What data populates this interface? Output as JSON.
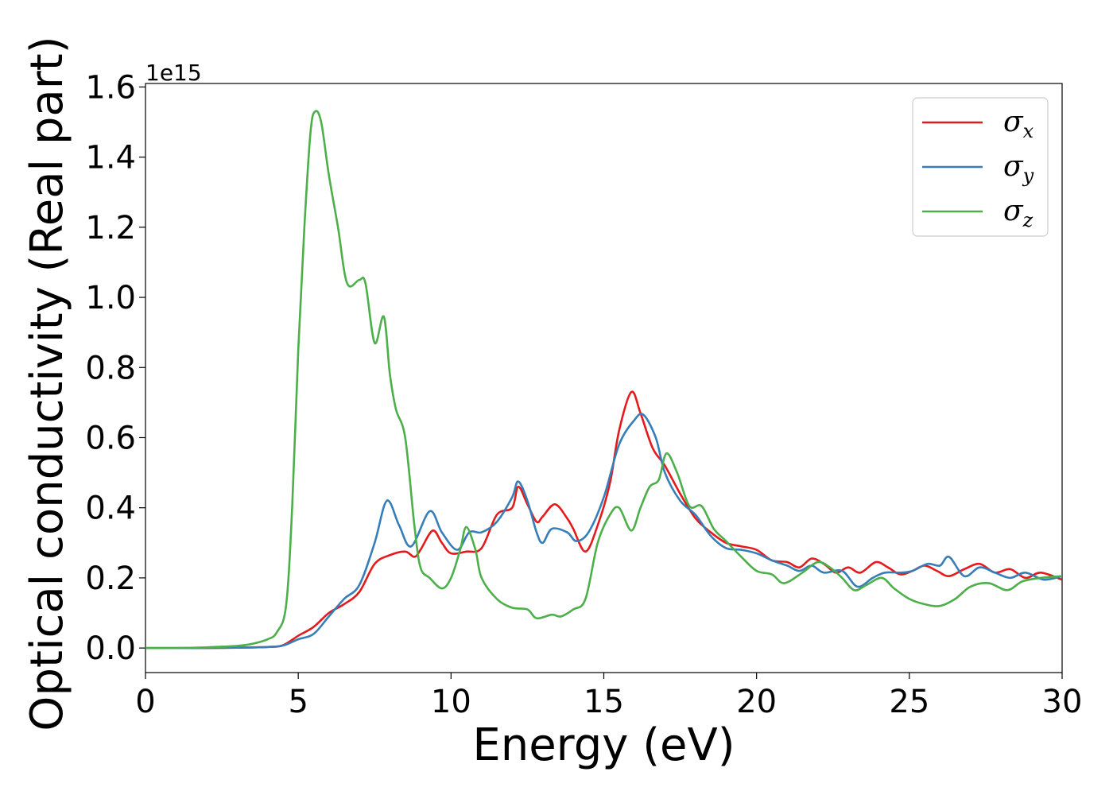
{
  "chart_data": {
    "type": "line",
    "title": "",
    "xlabel": "Energy (eV)",
    "ylabel": "Optical conductivity (Real part)",
    "y_offset_label": "1e15",
    "xlim": [
      0,
      30
    ],
    "ylim": [
      -0.07,
      1.61
    ],
    "x_ticks": [
      0,
      5,
      10,
      15,
      20,
      25,
      30
    ],
    "x_tick_labels": [
      "0",
      "5",
      "10",
      "15",
      "20",
      "25",
      "30"
    ],
    "y_ticks": [
      0.0,
      0.2,
      0.4,
      0.6,
      0.8,
      1.0,
      1.2,
      1.4,
      1.6
    ],
    "y_tick_labels": [
      "0.0",
      "0.2",
      "0.4",
      "0.6",
      "0.8",
      "1.0",
      "1.2",
      "1.4",
      "1.6"
    ],
    "grid": false,
    "legend_position": "top-right",
    "series": [
      {
        "name": "σx",
        "symbol": "σ",
        "subscript": "x",
        "color": "#e41a1c",
        "points": [
          [
            0,
            0.0
          ],
          [
            1,
            0.0
          ],
          [
            2,
            0.0
          ],
          [
            3,
            0.001
          ],
          [
            4,
            0.003
          ],
          [
            4.5,
            0.008
          ],
          [
            5,
            0.035
          ],
          [
            5.5,
            0.06
          ],
          [
            6,
            0.1
          ],
          [
            6.5,
            0.125
          ],
          [
            7,
            0.16
          ],
          [
            7.5,
            0.24
          ],
          [
            8,
            0.265
          ],
          [
            8.5,
            0.275
          ],
          [
            8.8,
            0.26
          ],
          [
            9,
            0.28
          ],
          [
            9.4,
            0.335
          ],
          [
            9.7,
            0.3
          ],
          [
            10,
            0.27
          ],
          [
            10.5,
            0.275
          ],
          [
            11,
            0.285
          ],
          [
            11.5,
            0.38
          ],
          [
            12,
            0.4
          ],
          [
            12.2,
            0.46
          ],
          [
            12.5,
            0.41
          ],
          [
            12.8,
            0.36
          ],
          [
            13,
            0.375
          ],
          [
            13.4,
            0.41
          ],
          [
            13.8,
            0.37
          ],
          [
            14,
            0.34
          ],
          [
            14.4,
            0.275
          ],
          [
            14.8,
            0.35
          ],
          [
            15.2,
            0.47
          ],
          [
            15.5,
            0.62
          ],
          [
            15.9,
            0.73
          ],
          [
            16.2,
            0.67
          ],
          [
            16.6,
            0.57
          ],
          [
            17,
            0.52
          ],
          [
            17.5,
            0.44
          ],
          [
            18,
            0.37
          ],
          [
            18.5,
            0.33
          ],
          [
            19,
            0.3
          ],
          [
            19.5,
            0.29
          ],
          [
            20,
            0.28
          ],
          [
            20.5,
            0.25
          ],
          [
            21,
            0.245
          ],
          [
            21.4,
            0.23
          ],
          [
            21.8,
            0.255
          ],
          [
            22.2,
            0.24
          ],
          [
            22.6,
            0.215
          ],
          [
            23,
            0.23
          ],
          [
            23.4,
            0.215
          ],
          [
            23.9,
            0.245
          ],
          [
            24.3,
            0.23
          ],
          [
            24.7,
            0.21
          ],
          [
            25.1,
            0.22
          ],
          [
            25.5,
            0.235
          ],
          [
            25.9,
            0.22
          ],
          [
            26.3,
            0.205
          ],
          [
            26.8,
            0.225
          ],
          [
            27.3,
            0.24
          ],
          [
            27.8,
            0.215
          ],
          [
            28.3,
            0.225
          ],
          [
            28.8,
            0.2
          ],
          [
            29.3,
            0.215
          ],
          [
            30,
            0.195
          ]
        ]
      },
      {
        "name": "σy",
        "symbol": "σ",
        "subscript": "y",
        "color": "#377eb8",
        "points": [
          [
            0,
            0.0
          ],
          [
            1,
            0.0
          ],
          [
            2,
            0.0
          ],
          [
            3,
            0.001
          ],
          [
            4,
            0.003
          ],
          [
            4.5,
            0.007
          ],
          [
            5,
            0.025
          ],
          [
            5.5,
            0.04
          ],
          [
            6,
            0.09
          ],
          [
            6.5,
            0.14
          ],
          [
            7,
            0.18
          ],
          [
            7.5,
            0.3
          ],
          [
            7.9,
            0.42
          ],
          [
            8.3,
            0.35
          ],
          [
            8.7,
            0.29
          ],
          [
            9.3,
            0.39
          ],
          [
            9.7,
            0.33
          ],
          [
            10.2,
            0.28
          ],
          [
            10.6,
            0.33
          ],
          [
            11,
            0.33
          ],
          [
            11.5,
            0.36
          ],
          [
            12,
            0.43
          ],
          [
            12.2,
            0.475
          ],
          [
            12.5,
            0.42
          ],
          [
            12.8,
            0.33
          ],
          [
            13,
            0.3
          ],
          [
            13.3,
            0.34
          ],
          [
            13.8,
            0.33
          ],
          [
            14.1,
            0.305
          ],
          [
            14.5,
            0.33
          ],
          [
            15,
            0.43
          ],
          [
            15.5,
            0.58
          ],
          [
            16,
            0.65
          ],
          [
            16.3,
            0.665
          ],
          [
            16.7,
            0.6
          ],
          [
            17,
            0.5
          ],
          [
            17.5,
            0.42
          ],
          [
            18,
            0.38
          ],
          [
            18.5,
            0.32
          ],
          [
            19,
            0.285
          ],
          [
            19.5,
            0.28
          ],
          [
            20,
            0.27
          ],
          [
            20.5,
            0.25
          ],
          [
            21,
            0.235
          ],
          [
            21.4,
            0.22
          ],
          [
            21.8,
            0.235
          ],
          [
            22.2,
            0.215
          ],
          [
            22.8,
            0.22
          ],
          [
            23.3,
            0.175
          ],
          [
            23.8,
            0.2
          ],
          [
            24.2,
            0.215
          ],
          [
            24.7,
            0.215
          ],
          [
            25.1,
            0.22
          ],
          [
            25.6,
            0.24
          ],
          [
            26,
            0.235
          ],
          [
            26.3,
            0.26
          ],
          [
            26.8,
            0.205
          ],
          [
            27.3,
            0.23
          ],
          [
            27.8,
            0.215
          ],
          [
            28.3,
            0.2
          ],
          [
            28.8,
            0.215
          ],
          [
            29.4,
            0.195
          ],
          [
            30,
            0.205
          ]
        ]
      },
      {
        "name": "σz",
        "symbol": "σ",
        "subscript": "z",
        "color": "#4daf4a",
        "points": [
          [
            0,
            0.0
          ],
          [
            1,
            0.0
          ],
          [
            2,
            0.002
          ],
          [
            3,
            0.006
          ],
          [
            3.5,
            0.012
          ],
          [
            4,
            0.025
          ],
          [
            4.3,
            0.045
          ],
          [
            4.6,
            0.12
          ],
          [
            4.8,
            0.4
          ],
          [
            5,
            0.85
          ],
          [
            5.2,
            1.2
          ],
          [
            5.4,
            1.47
          ],
          [
            5.55,
            1.53
          ],
          [
            5.75,
            1.5
          ],
          [
            6,
            1.35
          ],
          [
            6.3,
            1.2
          ],
          [
            6.6,
            1.04
          ],
          [
            7,
            1.05
          ],
          [
            7.2,
            1.04
          ],
          [
            7.5,
            0.87
          ],
          [
            7.8,
            0.945
          ],
          [
            8,
            0.78
          ],
          [
            8.2,
            0.68
          ],
          [
            8.5,
            0.6
          ],
          [
            8.8,
            0.35
          ],
          [
            9,
            0.23
          ],
          [
            9.3,
            0.2
          ],
          [
            9.7,
            0.17
          ],
          [
            10,
            0.2
          ],
          [
            10.3,
            0.28
          ],
          [
            10.5,
            0.345
          ],
          [
            10.8,
            0.28
          ],
          [
            11,
            0.2
          ],
          [
            11.5,
            0.14
          ],
          [
            12,
            0.115
          ],
          [
            12.5,
            0.11
          ],
          [
            12.8,
            0.085
          ],
          [
            13.3,
            0.095
          ],
          [
            13.6,
            0.09
          ],
          [
            14,
            0.11
          ],
          [
            14.4,
            0.14
          ],
          [
            14.8,
            0.3
          ],
          [
            15.2,
            0.38
          ],
          [
            15.5,
            0.4
          ],
          [
            15.9,
            0.335
          ],
          [
            16.2,
            0.4
          ],
          [
            16.5,
            0.46
          ],
          [
            16.8,
            0.48
          ],
          [
            17.05,
            0.555
          ],
          [
            17.4,
            0.5
          ],
          [
            17.8,
            0.405
          ],
          [
            18.2,
            0.405
          ],
          [
            18.6,
            0.34
          ],
          [
            19,
            0.305
          ],
          [
            19.5,
            0.26
          ],
          [
            20,
            0.22
          ],
          [
            20.5,
            0.21
          ],
          [
            20.9,
            0.185
          ],
          [
            21.5,
            0.215
          ],
          [
            22,
            0.245
          ],
          [
            22.4,
            0.23
          ],
          [
            22.8,
            0.2
          ],
          [
            23.2,
            0.165
          ],
          [
            23.6,
            0.18
          ],
          [
            24.1,
            0.2
          ],
          [
            24.5,
            0.17
          ],
          [
            25,
            0.14
          ],
          [
            25.5,
            0.125
          ],
          [
            26,
            0.12
          ],
          [
            26.5,
            0.14
          ],
          [
            27,
            0.175
          ],
          [
            27.6,
            0.185
          ],
          [
            28.2,
            0.165
          ],
          [
            28.7,
            0.19
          ],
          [
            29.3,
            0.2
          ],
          [
            30,
            0.205
          ]
        ]
      }
    ]
  }
}
